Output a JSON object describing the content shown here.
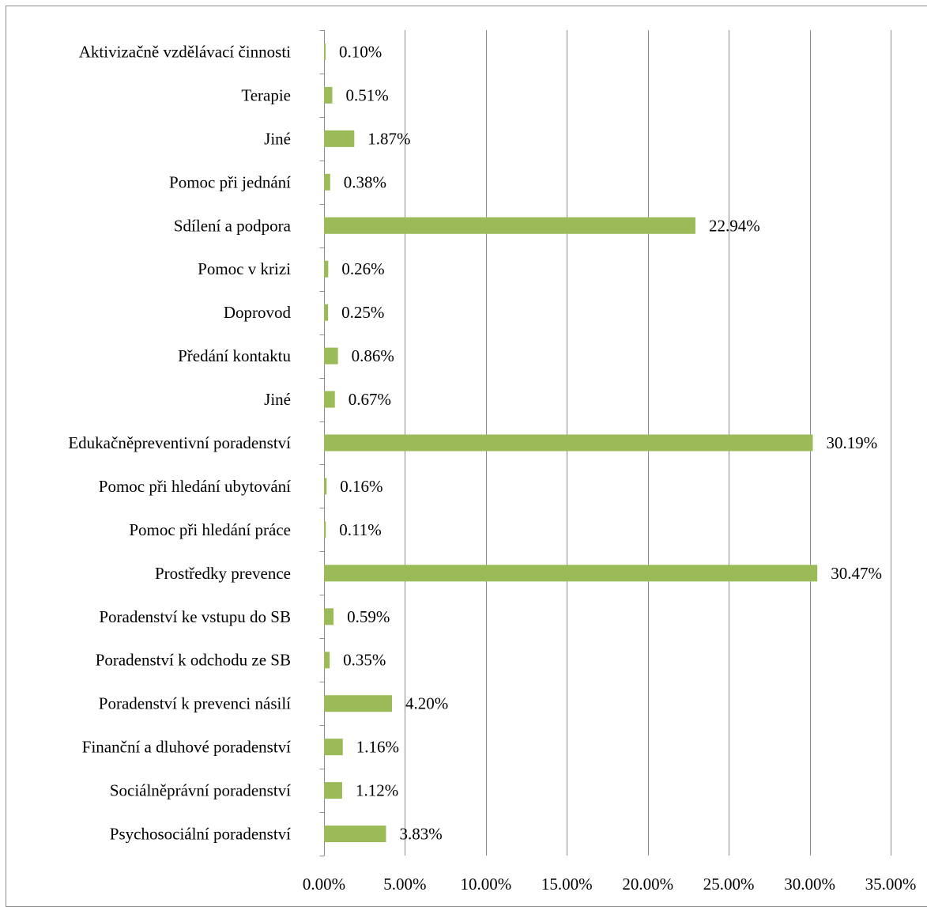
{
  "chart_data": {
    "type": "bar",
    "orientation": "horizontal",
    "title": "",
    "xlabel": "",
    "ylabel": "",
    "xlim": [
      0,
      35
    ],
    "x_ticks": [
      0,
      5,
      10,
      15,
      20,
      25,
      30,
      35
    ],
    "x_tick_labels": [
      "0.00%",
      "5.00%",
      "10.00%",
      "15.00%",
      "20.00%",
      "25.00%",
      "30.00%",
      "35.00%"
    ],
    "grid": "vertical major gridlines",
    "legend": "none",
    "bar_color": "#9bbb59",
    "categories": [
      "Aktivizačně vzdělávací činnosti",
      "Terapie",
      "Jiné",
      "Pomoc při jednání",
      "Sdílení a podpora",
      "Pomoc v krizi",
      "Doprovod",
      "Předání kontaktu",
      "Jiné",
      "Edukačněpreventivní poradenství",
      "Pomoc při hledání ubytování",
      "Pomoc při hledání práce",
      "Prostředky prevence",
      "Poradenství ke vstupu do SB",
      "Poradenství k odchodu ze SB",
      "Poradenství k prevenci násilí",
      "Finanční a dluhové poradenství",
      "Sociálněprávní poradenství",
      "Psychosociální poradenství"
    ],
    "values": [
      0.1,
      0.51,
      1.87,
      0.38,
      22.94,
      0.26,
      0.25,
      0.86,
      0.67,
      30.19,
      0.16,
      0.11,
      30.47,
      0.59,
      0.35,
      4.2,
      1.16,
      1.12,
      3.83
    ],
    "value_labels": [
      "0.10%",
      "0.51%",
      "1.87%",
      "0.38%",
      "22.94%",
      "0.26%",
      "0.25%",
      "0.86%",
      "0.67%",
      "30.19%",
      "0.16%",
      "0.11%",
      "30.47%",
      "0.59%",
      "0.35%",
      "4.20%",
      "1.16%",
      "1.12%",
      "3.83%"
    ]
  }
}
